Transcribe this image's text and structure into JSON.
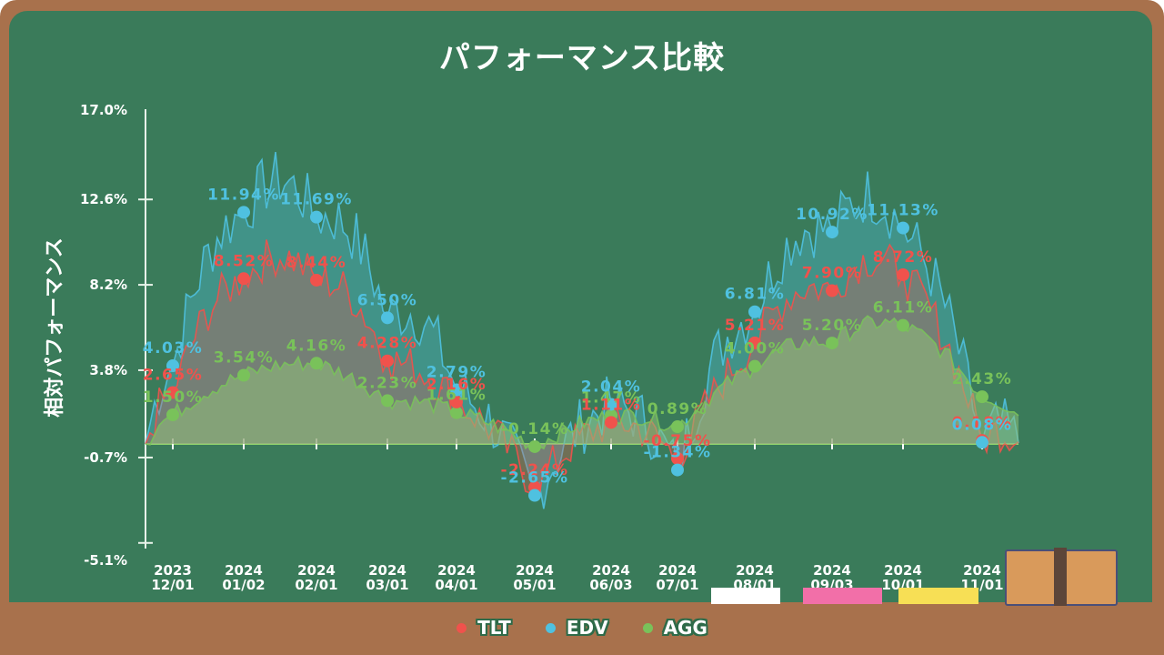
{
  "title": "パフォーマンス比較",
  "y_axis_label": "相対パフォーマンス",
  "colors": {
    "TLT": "#f0524c",
    "EDV": "#4fc1e0",
    "AGG": "#79c25a",
    "board": "#3a7b5a",
    "frame": "#a8714c"
  },
  "legend": [
    {
      "label": "TLT",
      "color": "#f0524c"
    },
    {
      "label": "EDV",
      "color": "#4fc1e0"
    },
    {
      "label": "AGG",
      "color": "#79c25a"
    }
  ],
  "chart_data": {
    "type": "area",
    "title": "パフォーマンス比較",
    "xlabel": "",
    "ylabel": "相対パフォーマンス",
    "ylim": [
      -5.1,
      17.0
    ],
    "y_ticks": [
      "17.0%",
      "12.6%",
      "8.2%",
      "3.8%",
      "-0.7%",
      "-5.1%"
    ],
    "categories": [
      "2023\n12/01",
      "2024\n01/02",
      "2024\n02/01",
      "2024\n03/01",
      "2024\n04/01",
      "2024\n05/01",
      "2024\n06/03",
      "2024\n07/01",
      "2024\n08/01",
      "2024\n09/03",
      "2024\n10/01",
      "2024\n11/01"
    ],
    "marked_categories": [
      "12/01",
      "01/02",
      "02/01",
      "03/01",
      "04/01",
      "05/01",
      "06/03",
      "07/01",
      "09/03",
      "10/01",
      "11/01"
    ],
    "series": [
      {
        "name": "TLT",
        "values": [
          2.65,
          8.52,
          8.44,
          4.28,
          2.16,
          -2.24,
          1.11,
          -0.75,
          5.21,
          7.9,
          8.72,
          0.18
        ]
      },
      {
        "name": "EDV",
        "values": [
          4.03,
          11.94,
          11.69,
          6.5,
          2.79,
          -2.65,
          2.04,
          -1.34,
          6.81,
          10.92,
          11.13,
          0.08
        ]
      },
      {
        "name": "AGG",
        "values": [
          1.5,
          3.54,
          4.16,
          2.23,
          1.61,
          -0.14,
          1.47,
          0.89,
          4.0,
          5.2,
          6.11,
          2.43
        ]
      }
    ],
    "legend_position": "bottom",
    "grid": false
  }
}
